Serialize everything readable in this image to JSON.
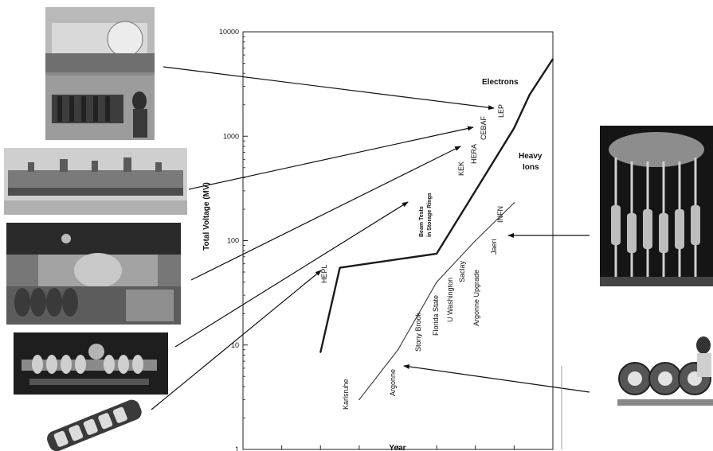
{
  "chart_data": {
    "type": "line",
    "title": "",
    "xlabel": "Year",
    "ylabel": "Total  Voltage (MV)",
    "xlim": [
      1960,
      2000
    ],
    "ylim": [
      1,
      10000
    ],
    "yscale": "log",
    "x_ticks": [
      "1960",
      "1965",
      "1970",
      "1975",
      "1980",
      "1985",
      "1990",
      "1995",
      "2000"
    ],
    "y_ticks": [
      {
        "value": 1,
        "label": "1"
      },
      {
        "value": 10,
        "label": "10"
      },
      {
        "value": 100,
        "label": "100"
      },
      {
        "value": 1000,
        "label": "1000"
      },
      {
        "value": 10000,
        "label": "10000"
      }
    ],
    "series": [
      {
        "name": "Electrons",
        "values": [
          {
            "x": 1970,
            "y": 8.5
          },
          {
            "x": 1972.5,
            "y": 55
          },
          {
            "x": 1985,
            "y": 75
          },
          {
            "x": 1990,
            "y": 300
          },
          {
            "x": 1995,
            "y": 1200
          },
          {
            "x": 1997,
            "y": 2500
          },
          {
            "x": 2000,
            "y": 5500
          }
        ]
      },
      {
        "name": "Heavy Ions",
        "values": [
          {
            "x": 1975,
            "y": 3
          },
          {
            "x": 1980,
            "y": 9
          },
          {
            "x": 1985,
            "y": 40
          },
          {
            "x": 1990,
            "y": 100
          },
          {
            "x": 1995,
            "y": 230
          }
        ]
      }
    ],
    "annotations": {
      "electrons": "Electrons",
      "heavy_ions_line1": "Heavy",
      "heavy_ions_line2": "Ions",
      "lep": "LEP",
      "cebaf": "CEBAF",
      "hera": "HERA",
      "kek": "KEK",
      "beam_tests_line1": "Beam Tests",
      "beam_tests_line2": "in Storage Rings",
      "hepl": "HEPL",
      "karlsruhe": "Karlsruhe",
      "argonne": "Argonne",
      "stony_brook": "Stony Brook",
      "florida_state": "Florida  State",
      "u_washington": "U Washington",
      "saclay": "Saclay",
      "argonne_upgrade": "Argonne Upgrade",
      "jaeri": "Jaeri",
      "infn": "INFN"
    }
  },
  "colors": {
    "electron_line": "#1a1a1a",
    "ion_line": "#444444",
    "frame": "#222222"
  }
}
